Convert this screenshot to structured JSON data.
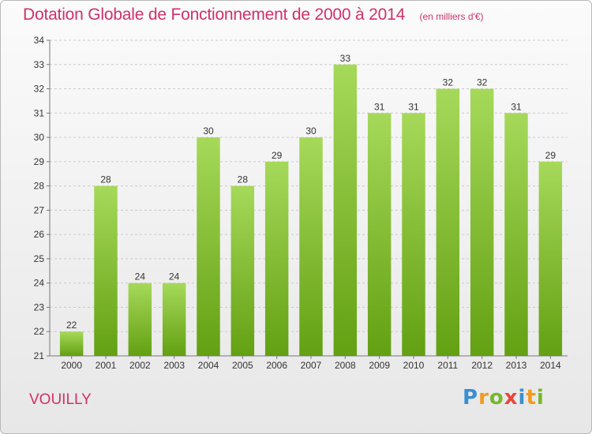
{
  "header": {
    "title": "Dotation Globale de Fonctionnement de 2000 à 2014",
    "unit": "(en milliers d'€)"
  },
  "footer": {
    "commune": "VOUILLY",
    "logo": "Proxiti"
  },
  "colors": {
    "bar_light": "#a6d95a",
    "bar_dark": "#63a012",
    "title": "#d0306b"
  },
  "chart_data": {
    "type": "bar",
    "title": "Dotation Globale de Fonctionnement de 2000 à 2014",
    "subtitle": "(en milliers d'€)",
    "categories": [
      "2000",
      "2001",
      "2002",
      "2003",
      "2004",
      "2005",
      "2006",
      "2007",
      "2008",
      "2009",
      "2010",
      "2011",
      "2012",
      "2013",
      "2014"
    ],
    "values": [
      22,
      28,
      24,
      24,
      30,
      28,
      29,
      30,
      33,
      31,
      31,
      32,
      32,
      31,
      29
    ],
    "xlabel": "",
    "ylabel": "",
    "ylim": [
      21,
      34
    ],
    "yticks": [
      21,
      22,
      23,
      24,
      25,
      26,
      27,
      28,
      29,
      30,
      31,
      32,
      33,
      34
    ],
    "grid": true,
    "data_labels": true,
    "legend": "none"
  }
}
